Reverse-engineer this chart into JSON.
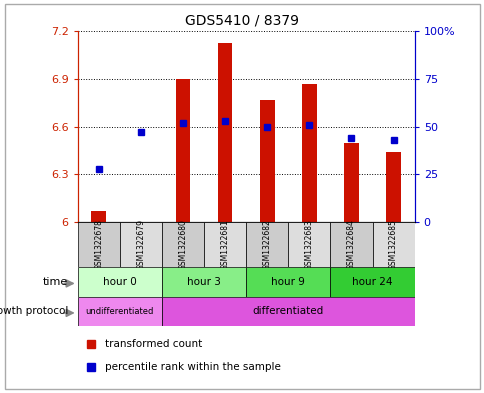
{
  "title": "GDS5410 / 8379",
  "samples": [
    "GSM1322678",
    "GSM1322679",
    "GSM1322680",
    "GSM1322681",
    "GSM1322682",
    "GSM1322683",
    "GSM1322684",
    "GSM1322685"
  ],
  "transformed_counts": [
    6.07,
    6.0,
    6.9,
    7.13,
    6.77,
    6.87,
    6.5,
    6.44
  ],
  "percentile_ranks": [
    28,
    47,
    52,
    53,
    50,
    51,
    44,
    43
  ],
  "ylim_left": [
    6.0,
    7.2
  ],
  "ylim_right": [
    0,
    100
  ],
  "yticks_left": [
    6.0,
    6.3,
    6.6,
    6.9,
    7.2
  ],
  "ytick_labels_left": [
    "6",
    "6.3",
    "6.6",
    "6.9",
    "7.2"
  ],
  "yticks_right": [
    0,
    25,
    50,
    75,
    100
  ],
  "ytick_labels_right": [
    "0",
    "25",
    "50",
    "75",
    "100%"
  ],
  "bar_color": "#cc1100",
  "dot_color": "#0000cc",
  "time_groups": [
    {
      "label": "hour 0",
      "samples": [
        0,
        1
      ],
      "color": "#ccffcc"
    },
    {
      "label": "hour 3",
      "samples": [
        2,
        3
      ],
      "color": "#88ee88"
    },
    {
      "label": "hour 9",
      "samples": [
        4,
        5
      ],
      "color": "#55dd55"
    },
    {
      "label": "hour 24",
      "samples": [
        6,
        7
      ],
      "color": "#33cc33"
    }
  ],
  "sample_bg_colors": [
    "#cccccc",
    "#dddddd",
    "#cccccc",
    "#dddddd",
    "#cccccc",
    "#dddddd",
    "#cccccc",
    "#dddddd"
  ],
  "undiff_color": "#ee88ee",
  "diff_color": "#dd55dd"
}
